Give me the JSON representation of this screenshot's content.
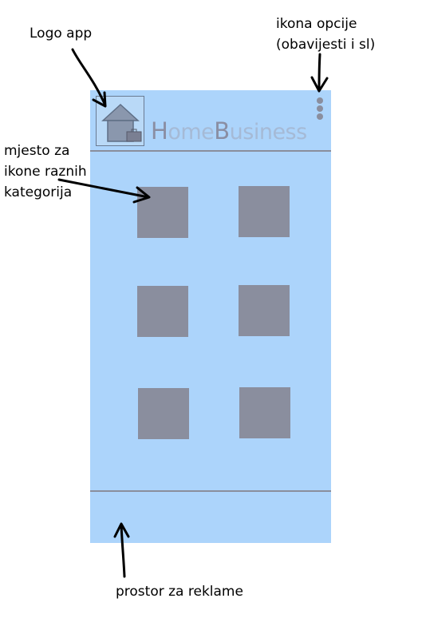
{
  "annotations": {
    "logo": "Logo app",
    "options_line1": "ikona opcije",
    "options_line2": "(obavijesti i sl)",
    "categories_line1": "mjesto za",
    "categories_line2": "ikone raznih",
    "categories_line3": "kategorija",
    "ads": "prostor za reklame"
  },
  "app": {
    "name_h": "H",
    "name_ome": "ome",
    "name_b": "B",
    "name_usiness": "usiness",
    "logo_icon": "house-with-briefcase-icon",
    "options_icon": "vertical-dots-icon"
  },
  "category_slots": [
    {
      "row": 1,
      "col": 1
    },
    {
      "row": 1,
      "col": 2
    },
    {
      "row": 2,
      "col": 1
    },
    {
      "row": 2,
      "col": 2
    },
    {
      "row": 3,
      "col": 1
    },
    {
      "row": 3,
      "col": 2
    }
  ],
  "colors": {
    "screen_background": "#acd4fb",
    "placeholder_gray": "#8a8e9e",
    "title_light": "#a5bad6"
  }
}
